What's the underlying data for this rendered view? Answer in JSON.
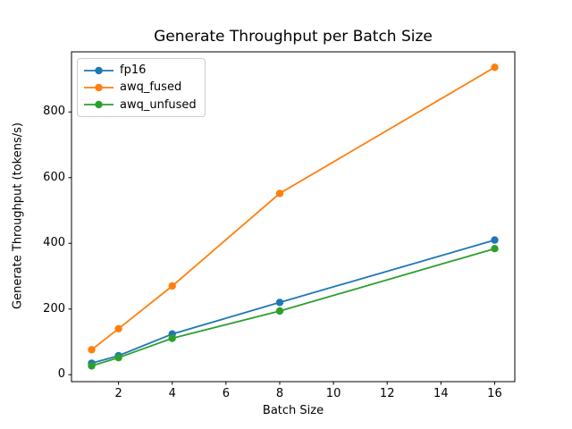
{
  "chart_data": {
    "type": "line",
    "title": "Generate Throughput per Batch Size",
    "xlabel": "Batch Size",
    "ylabel": "Generate Throughput (tokens/s)",
    "x": [
      1,
      2,
      4,
      8,
      16
    ],
    "series": [
      {
        "name": "fp16",
        "color": "#1f77b4",
        "values": [
          35,
          58,
          124,
          220,
          410
        ]
      },
      {
        "name": "awq_fused",
        "color": "#ff7f0e",
        "values": [
          76,
          140,
          270,
          552,
          936
        ]
      },
      {
        "name": "awq_unfused",
        "color": "#2ca02c",
        "values": [
          27,
          52,
          111,
          194,
          384
        ]
      }
    ],
    "marker": "o",
    "xticks": [
      2,
      4,
      6,
      8,
      10,
      12,
      14,
      16
    ],
    "xtick_labels": [
      "2",
      "4",
      "6",
      "8",
      "10",
      "12",
      "14",
      "16"
    ],
    "yticks": [
      0,
      200,
      400,
      600,
      800
    ],
    "ytick_labels": [
      "0",
      "200",
      "400",
      "600",
      "800"
    ],
    "xlim": [
      0.25,
      16.75
    ],
    "ylim": [
      -21,
      983
    ],
    "grid": false,
    "legend_position": "upper left",
    "axis_color": "#000000",
    "background_color": "#ffffff"
  }
}
